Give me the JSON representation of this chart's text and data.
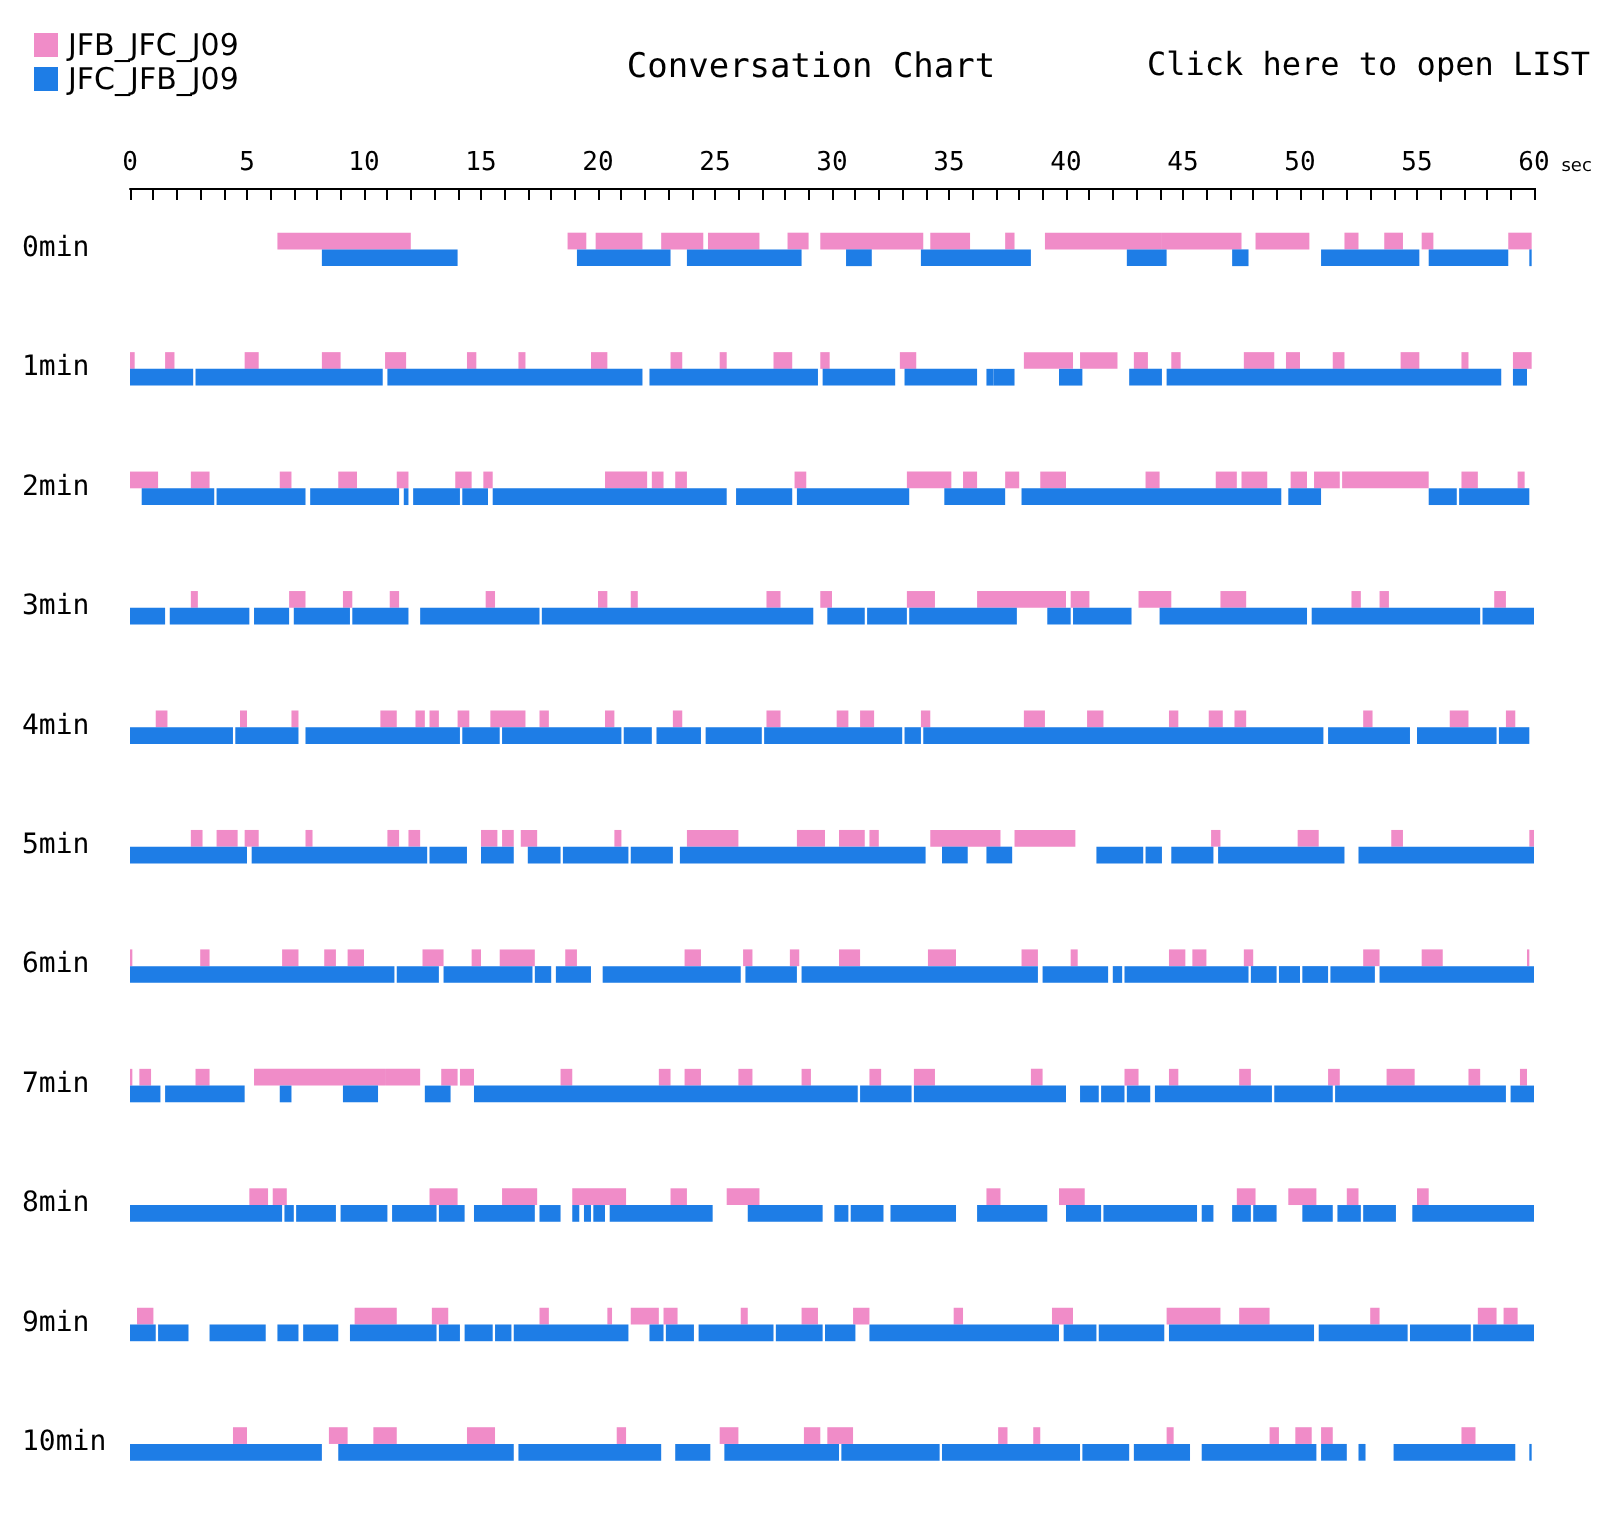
{
  "chart_data": {
    "type": "bar",
    "orientation": "horizontal",
    "title": "Conversation Chart",
    "xlabel": "sec",
    "annotations": [
      "Click here to open LIST"
    ],
    "legend": "top left",
    "grid": false,
    "categories": [
      "0min",
      "1min",
      "2min",
      "3min",
      "4min",
      "5min",
      "6min",
      "7min",
      "8min",
      "9min",
      "10min"
    ],
    "xlim": [
      0,
      60
    ],
    "xticks": [
      0,
      {
        "value": 1,
        "label": null
      },
      {
        "value": 2,
        "label": null
      },
      {
        "value": 3,
        "label": null
      },
      {
        "value": 4,
        "label": null
      },
      5,
      {
        "value": 6,
        "label": null
      },
      {
        "value": 7,
        "label": null
      },
      {
        "value": 8,
        "label": null
      },
      {
        "value": 9,
        "label": null
      },
      10,
      {
        "value": 11,
        "label": null
      },
      {
        "value": 12,
        "label": null
      },
      {
        "value": 13,
        "label": null
      },
      {
        "value": 14,
        "label": null
      },
      15,
      {
        "value": 16,
        "label": null
      },
      {
        "value": 17,
        "label": null
      },
      {
        "value": 18,
        "label": null
      },
      {
        "value": 19,
        "label": null
      },
      20,
      {
        "value": 21,
        "label": null
      },
      {
        "value": 22,
        "label": null
      },
      {
        "value": 23,
        "label": null
      },
      {
        "value": 24,
        "label": null
      },
      25,
      {
        "value": 26,
        "label": null
      },
      {
        "value": 27,
        "label": null
      },
      {
        "value": 28,
        "label": null
      },
      {
        "value": 29,
        "label": null
      },
      30,
      {
        "value": 31,
        "label": null
      },
      {
        "value": 32,
        "label": null
      },
      {
        "value": 33,
        "label": null
      },
      {
        "value": 34,
        "label": null
      },
      35,
      {
        "value": 36,
        "label": null
      },
      {
        "value": 37,
        "label": null
      },
      {
        "value": 38,
        "label": null
      },
      {
        "value": 39,
        "label": null
      },
      40,
      {
        "value": 41,
        "label": null
      },
      {
        "value": 42,
        "label": null
      },
      {
        "value": 43,
        "label": null
      },
      {
        "value": 44,
        "label": null
      },
      45,
      {
        "value": 46,
        "label": null
      },
      {
        "value": 47,
        "label": null
      },
      {
        "value": 48,
        "label": null
      },
      {
        "value": 49,
        "label": null
      },
      50,
      {
        "value": 51,
        "label": null
      },
      {
        "value": 52,
        "label": null
      },
      {
        "value": 53,
        "label": null
      },
      {
        "value": 54,
        "label": null
      },
      55,
      {
        "value": 56,
        "label": null
      },
      {
        "value": 57,
        "label": null
      },
      {
        "value": 58,
        "label": null
      },
      {
        "value": 59,
        "label": null
      },
      60
    ],
    "series": [
      {
        "name": "JFB_JFC_J09",
        "color": "#f08cc8",
        "base": [
          6.3,
          0,
          0,
          2.6,
          1.1,
          2.6,
          0,
          0,
          5.1,
          0.3,
          4.4
        ],
        "values": [
          5.7,
          0.2,
          1.2,
          0.3,
          0.5,
          0.5,
          0.1,
          0.1,
          0.8,
          0.7,
          0.6
        ]
      },
      {
        "color": "#f08cc8",
        "base": [
          18.7,
          1.5,
          2.6,
          6.8,
          4.7,
          3.7,
          3.0,
          0.4,
          6.1,
          9.6,
          8.5
        ],
        "values": [
          0.8,
          0.4,
          0.8,
          0.7,
          0.3,
          0.9,
          0.4,
          0.5,
          0.6,
          1.8,
          0.8
        ]
      },
      {
        "color": "#f08cc8",
        "base": [
          19.9,
          4.9,
          6.4,
          9.1,
          6.9,
          4.9,
          6.5,
          2.8,
          12.8,
          12.9,
          10.4
        ],
        "values": [
          2.0,
          0.6,
          0.5,
          0.4,
          0.3,
          0.6,
          0.7,
          0.6,
          1.2,
          0.7,
          1.0
        ]
      },
      {
        "color": "#f08cc8",
        "base": [
          22.7,
          8.2,
          8.9,
          11.1,
          10.7,
          7.5,
          8.3,
          5.3,
          15.9,
          17.5,
          14.4
        ],
        "values": [
          1.8,
          0.8,
          0.8,
          0.4,
          0.7,
          0.3,
          0.5,
          5.6,
          1.5,
          0.4,
          1.2
        ]
      },
      {
        "color": "#f08cc8",
        "base": [
          24.7,
          10.9,
          11.4,
          15.2,
          12.2,
          11.0,
          9.3,
          10.9,
          18.9,
          20.4,
          20.8
        ],
        "values": [
          2.2,
          0.9,
          0.5,
          0.4,
          0.4,
          0.5,
          0.7,
          1.5,
          2.3,
          0.2,
          0.4
        ]
      },
      {
        "color": "#f08cc8",
        "base": [
          28.1,
          14.4,
          13.9,
          20.0,
          12.8,
          11.9,
          12.5,
          13.3,
          23.1,
          21.4,
          25.2
        ],
        "values": [
          0.9,
          0.4,
          0.7,
          0.4,
          0.4,
          0.5,
          0.9,
          0.7,
          0.7,
          1.2,
          0.8
        ]
      },
      {
        "color": "#f08cc8",
        "base": [
          29.5,
          16.6,
          15.1,
          21.4,
          14.0,
          15.0,
          14.6,
          14.1,
          25.5,
          22.8,
          28.8
        ],
        "values": [
          4.4,
          0.3,
          0.4,
          0.3,
          0.5,
          0.7,
          0.4,
          0.6,
          1.4,
          0.6,
          0.7
        ]
      },
      {
        "color": "#f08cc8",
        "base": [
          34.2,
          19.7,
          20.3,
          27.2,
          15.4,
          15.9,
          15.8,
          18.4,
          36.6,
          26.1,
          29.8
        ],
        "values": [
          1.7,
          0.7,
          1.8,
          0.6,
          1.5,
          0.5,
          1.5,
          0.5,
          0.6,
          0.3,
          1.1
        ]
      },
      {
        "color": "#f08cc8",
        "base": [
          37.4,
          23.1,
          22.3,
          29.5,
          17.5,
          16.7,
          18.6,
          22.6,
          39.7,
          28.7,
          37.1
        ],
        "values": [
          0.4,
          0.5,
          0.5,
          0.5,
          0.4,
          0.7,
          0.5,
          0.5,
          1.1,
          0.7,
          0.4
        ]
      },
      {
        "color": "#f08cc8",
        "base": [
          39.1,
          25.2,
          23.3,
          33.2,
          20.3,
          20.7,
          23.7,
          23.7,
          47.3,
          30.9,
          38.6
        ],
        "values": [
          5.0,
          0.3,
          0.5,
          1.2,
          0.4,
          0.3,
          0.7,
          0.7,
          0.8,
          0.7,
          0.3
        ]
      },
      {
        "color": "#f08cc8",
        "base": [
          44.1,
          27.5,
          28.4,
          36.2,
          23.2,
          23.8,
          26.2,
          26.0,
          49.5,
          35.2,
          44.3
        ],
        "values": [
          3.4,
          0.8,
          0.5,
          3.8,
          0.4,
          2.2,
          0.4,
          0.6,
          1.2,
          0.4,
          0.3
        ]
      },
      {
        "color": "#f08cc8",
        "base": [
          48.1,
          29.5,
          33.2,
          40.2,
          27.2,
          28.5,
          28.2,
          28.7,
          52.0,
          39.4,
          48.7
        ],
        "values": [
          2.3,
          0.4,
          1.9,
          0.8,
          0.6,
          1.2,
          0.4,
          0.4,
          0.5,
          0.9,
          0.4
        ]
      },
      {
        "color": "#f08cc8",
        "base": [
          51.9,
          32.9,
          35.6,
          43.1,
          30.2,
          30.3,
          30.3,
          31.6,
          55.0,
          44.3,
          49.8
        ],
        "values": [
          0.6,
          0.7,
          0.6,
          1.4,
          0.5,
          1.1,
          0.9,
          0.5,
          0.5,
          2.3,
          0.7
        ]
      },
      {
        "color": "#f08cc8",
        "base": [
          53.6,
          38.2,
          37.4,
          46.6,
          31.2,
          31.6,
          34.1,
          33.5,
          null,
          47.4,
          50.9
        ],
        "values": [
          0.8,
          2.1,
          0.6,
          1.1,
          0.6,
          0.4,
          1.2,
          0.9,
          null,
          1.3,
          0.5
        ]
      },
      {
        "color": "#f08cc8",
        "base": [
          55.2,
          40.6,
          38.9,
          52.2,
          33.8,
          34.2,
          38.1,
          38.5,
          null,
          53.0,
          56.9
        ],
        "values": [
          0.5,
          1.6,
          1.1,
          0.4,
          0.4,
          3.0,
          0.7,
          0.5,
          null,
          0.4,
          0.6
        ]
      },
      {
        "color": "#f08cc8",
        "base": [
          58.9,
          42.9,
          43.4,
          53.4,
          38.2,
          37.8,
          40.2,
          42.5,
          null,
          57.6,
          null
        ],
        "values": [
          1.0,
          0.6,
          0.6,
          0.4,
          0.9,
          2.6,
          0.3,
          0.6,
          null,
          0.8,
          null
        ]
      },
      {
        "color": "#f08cc8",
        "base": [
          null,
          44.5,
          46.4,
          58.3,
          40.9,
          46.2,
          44.4,
          44.4,
          null,
          58.7,
          null
        ],
        "values": [
          null,
          0.4,
          0.9,
          0.5,
          0.7,
          0.4,
          0.7,
          0.4,
          null,
          0.6,
          null
        ]
      },
      {
        "color": "#f08cc8",
        "base": [
          null,
          47.6,
          47.5,
          null,
          44.4,
          49.9,
          45.4,
          47.4,
          null,
          null,
          null
        ],
        "values": [
          null,
          1.3,
          1.1,
          null,
          0.4,
          0.9,
          0.6,
          0.5,
          null,
          null,
          null
        ]
      },
      {
        "color": "#f08cc8",
        "base": [
          null,
          49.4,
          49.6,
          null,
          46.1,
          53.9,
          47.6,
          51.2,
          null,
          null,
          null
        ],
        "values": [
          null,
          0.6,
          0.7,
          null,
          0.6,
          0.5,
          0.4,
          0.5,
          null,
          null,
          null
        ]
      },
      {
        "color": "#f08cc8",
        "base": [
          null,
          51.4,
          50.6,
          null,
          47.2,
          59.8,
          52.7,
          53.7,
          null,
          null,
          null
        ],
        "values": [
          null,
          0.5,
          1.1,
          null,
          0.5,
          0.2,
          0.7,
          1.2,
          null,
          null,
          null
        ]
      },
      {
        "color": "#f08cc8",
        "base": [
          null,
          54.3,
          51.8,
          null,
          52.7,
          null,
          55.2,
          57.2,
          null,
          null,
          null
        ],
        "values": [
          null,
          0.8,
          3.7,
          null,
          0.4,
          null,
          0.9,
          0.5,
          null,
          null,
          null
        ]
      },
      {
        "color": "#f08cc8",
        "base": [
          null,
          56.9,
          56.9,
          null,
          56.4,
          null,
          59.7,
          59.4,
          null,
          null,
          null
        ],
        "values": [
          null,
          0.3,
          0.7,
          null,
          0.8,
          null,
          0.1,
          0.3,
          null,
          null,
          null
        ]
      },
      {
        "color": "#f08cc8",
        "base": [
          null,
          59.1,
          59.3,
          null,
          58.8,
          null,
          null,
          null,
          null,
          null,
          null
        ],
        "values": [
          null,
          0.8,
          0.3,
          null,
          0.4,
          null,
          null,
          null,
          null,
          null,
          null
        ]
      },
      {
        "name": "JFC_JFB_J09",
        "color": "#1e7de6",
        "base": [
          8.2,
          0,
          0.5,
          0,
          0,
          0,
          0,
          0,
          0,
          0,
          0
        ],
        "values": [
          5.8,
          2.7,
          3.1,
          1.5,
          4.4,
          5.0,
          11.3,
          1.3,
          6.5,
          1.1,
          8.2
        ]
      },
      {
        "color": "#1e7de6",
        "base": [
          19.1,
          2.8,
          3.7,
          1.7,
          4.5,
          5.2,
          11.4,
          1.5,
          6.6,
          1.2,
          8.9
        ],
        "values": [
          4.0,
          8.0,
          3.8,
          3.4,
          2.7,
          7.5,
          1.8,
          3.4,
          0.4,
          1.3,
          7.5
        ]
      },
      {
        "color": "#1e7de6",
        "base": [
          23.8,
          11.0,
          7.7,
          5.3,
          7.5,
          12.8,
          13.4,
          6.4,
          7.1,
          3.4,
          16.6
        ],
        "values": [
          4.9,
          10.9,
          3.8,
          1.5,
          6.6,
          1.6,
          3.8,
          0.5,
          1.7,
          2.4,
          6.1
        ]
      },
      {
        "color": "#1e7de6",
        "base": [
          30.6,
          22.2,
          11.7,
          7.0,
          14.2,
          15.0,
          17.3,
          9.1,
          9.0,
          6.3,
          23.3
        ],
        "values": [
          1.1,
          7.2,
          0.2,
          2.4,
          1.6,
          1.4,
          0.7,
          1.5,
          2.0,
          0.9,
          1.5
        ]
      },
      {
        "color": "#1e7de6",
        "base": [
          33.8,
          29.6,
          12.1,
          9.5,
          15.9,
          17.0,
          18.2,
          12.6,
          11.2,
          7.4,
          25.4
        ],
        "values": [
          4.7,
          3.1,
          2.0,
          2.4,
          5.1,
          1.4,
          1.5,
          1.1,
          1.9,
          1.5,
          4.9
        ]
      },
      {
        "color": "#1e7de6",
        "base": [
          42.6,
          33.1,
          14.2,
          12.4,
          21.1,
          18.5,
          20.2,
          14.7,
          13.2,
          9.4,
          30.4
        ],
        "values": [
          1.7,
          3.1,
          1.1,
          5.1,
          1.2,
          2.8,
          5.9,
          16.4,
          1.1,
          3.7,
          4.2
        ]
      },
      {
        "color": "#1e7de6",
        "base": [
          47.1,
          36.6,
          15.5,
          17.6,
          22.5,
          21.4,
          26.3,
          31.2,
          14.7,
          13.2,
          34.7
        ],
        "values": [
          0.7,
          0.3,
          10.0,
          11.6,
          1.9,
          1.8,
          2.2,
          2.2,
          2.6,
          0.9,
          5.9
        ]
      },
      {
        "color": "#1e7de6",
        "base": [
          50.9,
          36.9,
          25.9,
          29.8,
          24.6,
          23.5,
          28.7,
          33.5,
          17.5,
          14.3,
          40.7
        ],
        "values": [
          4.2,
          0.9,
          2.4,
          1.6,
          2.4,
          10.5,
          10.1,
          6.5,
          0.9,
          1.2,
          2.0
        ]
      },
      {
        "color": "#1e7de6",
        "base": [
          55.5,
          39.7,
          28.5,
          31.5,
          27.1,
          34.7,
          39.0,
          40.6,
          18.9,
          15.6,
          42.9
        ],
        "values": [
          3.4,
          1.0,
          4.8,
          1.7,
          5.9,
          1.1,
          2.8,
          0.8,
          0.3,
          0.7,
          2.4
        ]
      },
      {
        "color": "#1e7de6",
        "base": [
          59.8,
          42.7,
          34.8,
          33.3,
          33.1,
          36.6,
          42.0,
          41.5,
          19.4,
          16.4,
          45.8
        ],
        "values": [
          0.1,
          1.4,
          2.6,
          4.6,
          0.7,
          1.1,
          0.4,
          1.0,
          0.3,
          4.9,
          4.9
        ]
      },
      {
        "color": "#1e7de6",
        "base": [
          null,
          44.3,
          38.1,
          39.2,
          33.9,
          41.3,
          42.5,
          42.6,
          19.8,
          22.2,
          50.9
        ],
        "values": [
          null,
          14.3,
          11.1,
          1.0,
          17.1,
          2.0,
          5.3,
          1.0,
          0.5,
          0.6,
          1.1
        ]
      },
      {
        "color": "#1e7de6",
        "base": [
          null,
          59.1,
          49.5,
          40.3,
          51.2,
          43.4,
          47.9,
          43.8,
          20.5,
          22.9,
          52.5
        ],
        "values": [
          null,
          0.6,
          1.4,
          2.5,
          3.5,
          0.7,
          1.1,
          5.0,
          4.4,
          1.2,
          0.3
        ]
      },
      {
        "color": "#1e7de6",
        "base": [
          null,
          null,
          55.5,
          44.0,
          55.0,
          44.5,
          49.1,
          48.9,
          26.4,
          24.3,
          54.0
        ],
        "values": [
          null,
          null,
          1.2,
          6.3,
          3.4,
          1.8,
          0.9,
          2.5,
          3.2,
          3.2,
          5.2
        ]
      },
      {
        "color": "#1e7de6",
        "base": [
          null,
          null,
          56.8,
          50.5,
          58.5,
          46.5,
          50.1,
          51.5,
          30.1,
          27.6,
          59.8
        ],
        "values": [
          null,
          null,
          3.0,
          7.2,
          1.3,
          5.4,
          1.1,
          7.3,
          0.6,
          2.0,
          0.1
        ]
      },
      {
        "color": "#1e7de6",
        "base": [
          null,
          null,
          null,
          57.8,
          null,
          52.5,
          51.3,
          59.0,
          30.8,
          29.7,
          null
        ],
        "values": [
          null,
          null,
          null,
          2.2,
          null,
          7.5,
          1.9,
          1.0,
          1.4,
          1.3,
          null
        ]
      },
      {
        "color": "#1e7de6",
        "base": [
          null,
          null,
          null,
          null,
          null,
          null,
          53.4,
          null,
          32.5,
          31.6,
          null
        ],
        "values": [
          null,
          null,
          null,
          null,
          null,
          null,
          6.6,
          null,
          2.8,
          8.1,
          null
        ]
      },
      {
        "color": "#1e7de6",
        "base": [
          null,
          null,
          null,
          null,
          null,
          null,
          null,
          null,
          36.2,
          39.9,
          null
        ],
        "values": [
          null,
          null,
          null,
          null,
          null,
          null,
          null,
          null,
          3.0,
          1.4,
          null
        ]
      },
      {
        "color": "#1e7de6",
        "base": [
          null,
          null,
          null,
          null,
          null,
          null,
          null,
          null,
          40.0,
          41.4,
          null
        ],
        "values": [
          null,
          null,
          null,
          null,
          null,
          null,
          null,
          null,
          1.5,
          2.8,
          null
        ]
      },
      {
        "color": "#1e7de6",
        "base": [
          null,
          null,
          null,
          null,
          null,
          null,
          null,
          null,
          41.6,
          44.4,
          null
        ],
        "values": [
          null,
          null,
          null,
          null,
          null,
          null,
          null,
          null,
          4.0,
          6.2,
          null
        ]
      },
      {
        "color": "#1e7de6",
        "base": [
          null,
          null,
          null,
          null,
          null,
          null,
          null,
          null,
          45.8,
          50.8,
          null
        ],
        "values": [
          null,
          null,
          null,
          null,
          null,
          null,
          null,
          null,
          0.5,
          3.8,
          null
        ]
      },
      {
        "color": "#1e7de6",
        "base": [
          null,
          null,
          null,
          null,
          null,
          null,
          null,
          null,
          47.1,
          54.7,
          null
        ],
        "values": [
          null,
          null,
          null,
          null,
          null,
          null,
          null,
          null,
          0.8,
          2.6,
          null
        ]
      },
      {
        "color": "#1e7de6",
        "base": [
          null,
          null,
          null,
          null,
          null,
          null,
          null,
          null,
          48.0,
          57.4,
          null
        ],
        "values": [
          null,
          null,
          null,
          null,
          null,
          null,
          null,
          null,
          1.0,
          2.6,
          null
        ]
      },
      {
        "color": "#1e7de6",
        "base": [
          null,
          null,
          null,
          null,
          null,
          null,
          null,
          null,
          50.1,
          null,
          null
        ],
        "values": [
          null,
          null,
          null,
          null,
          null,
          null,
          null,
          null,
          1.3,
          null,
          null
        ]
      },
      {
        "color": "#1e7de6",
        "base": [
          null,
          null,
          null,
          null,
          null,
          null,
          null,
          null,
          51.6,
          null,
          null
        ],
        "values": [
          null,
          null,
          null,
          null,
          null,
          null,
          null,
          null,
          1.0,
          null,
          null
        ]
      },
      {
        "color": "#1e7de6",
        "base": [
          null,
          null,
          null,
          null,
          null,
          null,
          null,
          null,
          52.7,
          null,
          null
        ],
        "values": [
          null,
          null,
          null,
          null,
          null,
          null,
          null,
          null,
          1.4,
          null,
          null
        ]
      },
      {
        "color": "#1e7de6",
        "base": [
          null,
          null,
          null,
          null,
          null,
          null,
          null,
          null,
          54.8,
          null,
          null
        ],
        "values": [
          null,
          null,
          null,
          null,
          null,
          null,
          null,
          null,
          5.2,
          null,
          null
        ]
      }
    ]
  }
}
